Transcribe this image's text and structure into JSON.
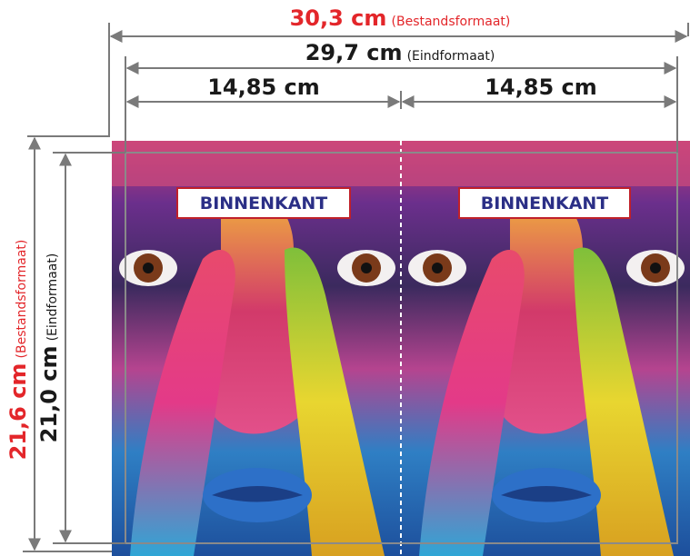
{
  "dimensions": {
    "stock_width": {
      "value": "30,3 cm",
      "note": "(Bestandsformaat)"
    },
    "final_width": {
      "value": "29,7 cm",
      "note": "(Eindformaat)"
    },
    "halves": [
      "14,85 cm",
      "14,85 cm"
    ],
    "stock_height": {
      "value": "21,6 cm",
      "note": "(Bestandsformaat)"
    },
    "final_height": {
      "value": "21,0 cm",
      "note": "(Eindformaat)"
    }
  },
  "panels": [
    "BINNENKANT",
    "BINNENKANT"
  ]
}
